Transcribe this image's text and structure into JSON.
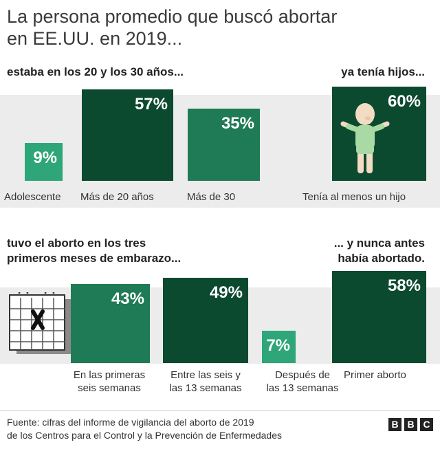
{
  "title_line1": "La persona promedio que buscó abortar",
  "title_line2": "en EE.UU. en 2019...",
  "colors": {
    "dark": "#0c4a30",
    "mid": "#1f7b55",
    "light": "#2fa679",
    "band": "#ececec"
  },
  "icons": [
    "baby-icon",
    "calendar-icon"
  ],
  "chart_data": [
    {
      "type": "bar",
      "subtitle": "estaba en los 20 y los 30 años...",
      "categories": [
        "Adolescente",
        "Más de 20 años",
        "Más de 30"
      ],
      "values": [
        9,
        57,
        35
      ],
      "labels": [
        "9%",
        "57%",
        "35%"
      ]
    },
    {
      "type": "bar",
      "subtitle": "ya tenía hijos...",
      "categories": [
        "Tenía al menos un hijo"
      ],
      "values": [
        60
      ],
      "labels": [
        "60%"
      ]
    },
    {
      "type": "bar",
      "subtitle_line1": "tuvo el aborto en los tres",
      "subtitle_line2": "primeros meses de embarazo...",
      "categories": [
        [
          "En las primeras",
          "seis semanas"
        ],
        [
          "Entre las seis y",
          "las 13 semanas"
        ],
        [
          "Después de",
          "las 13 semanas"
        ]
      ],
      "values": [
        43,
        49,
        7
      ],
      "labels": [
        "43%",
        "49%",
        "7%"
      ]
    },
    {
      "type": "bar",
      "subtitle_line1": "... y nunca antes",
      "subtitle_line2": "había abortado.",
      "categories": [
        "Primer aborto"
      ],
      "values": [
        58
      ],
      "labels": [
        "58%"
      ]
    }
  ],
  "footer": {
    "source_line1": "Fuente: cifras del informe de vigilancia del aborto de 2019",
    "source_line2": "de los Centros para el Control y la Prevención de Enfermedades",
    "logo": [
      "B",
      "B",
      "C"
    ]
  }
}
